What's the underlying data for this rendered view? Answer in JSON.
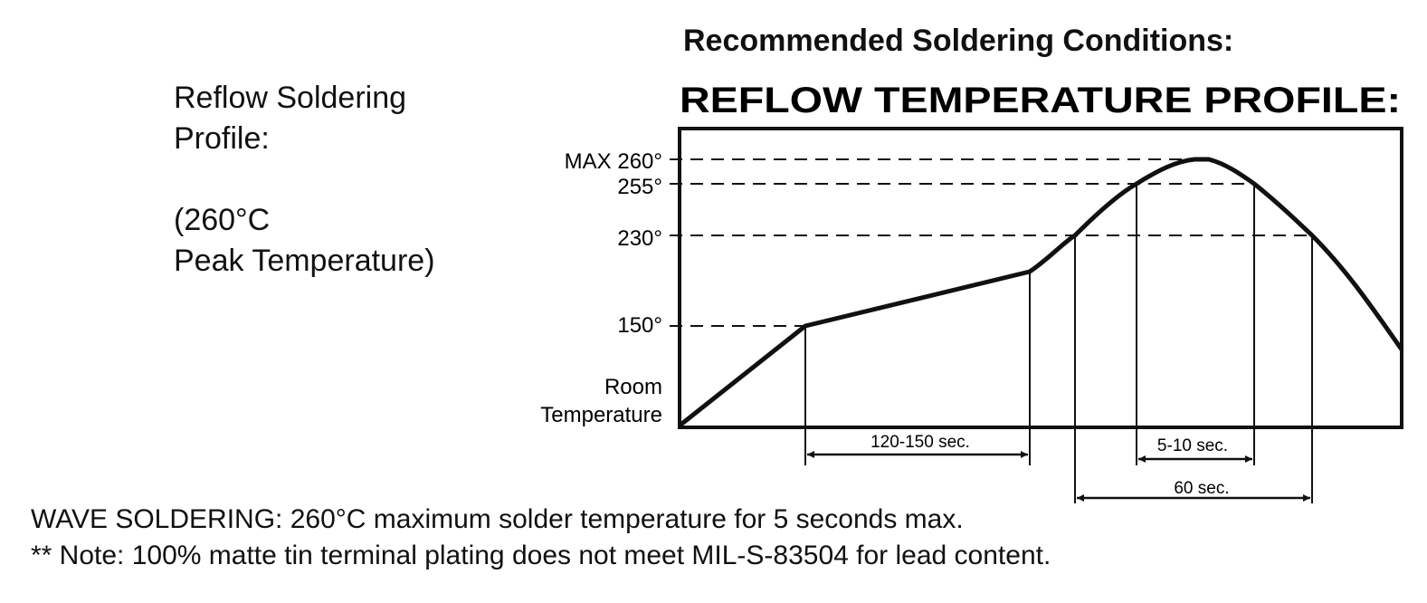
{
  "heading": "Recommended Soldering Conditions:",
  "left_note": {
    "line1": "Reflow Soldering",
    "line2": "Profile:",
    "line3": "(260°C",
    "line4": "Peak Temperature)"
  },
  "chart_title": "REFLOW TEMPERATURE PROFILE:",
  "y_labels": {
    "max": "MAX 260°",
    "t255": "255°",
    "t230": "230°",
    "t150": "150°",
    "room1": "Room",
    "room2": "Temperature"
  },
  "durations": {
    "preheat": "120-150 sec.",
    "peak": "5-10 sec.",
    "above_230": "60 sec."
  },
  "footer": {
    "wave": "WAVE SOLDERING: 260°C maximum solder temperature for 5 seconds max.",
    "note": "** Note: 100% matte tin terminal plating does not meet MIL-S-83504 for lead content."
  },
  "chart_data": {
    "type": "line",
    "title": "REFLOW TEMPERATURE PROFILE:",
    "y_levels": [
      "Room Temperature",
      "150°",
      "230°",
      "255°",
      "MAX 260°"
    ],
    "intervals": [
      {
        "label": "120-150 sec.",
        "between": "150° to start of final ramp"
      },
      {
        "label": "5-10 sec.",
        "between": "above 255°"
      },
      {
        "label": "60 sec.",
        "between": "above 230°"
      }
    ]
  }
}
